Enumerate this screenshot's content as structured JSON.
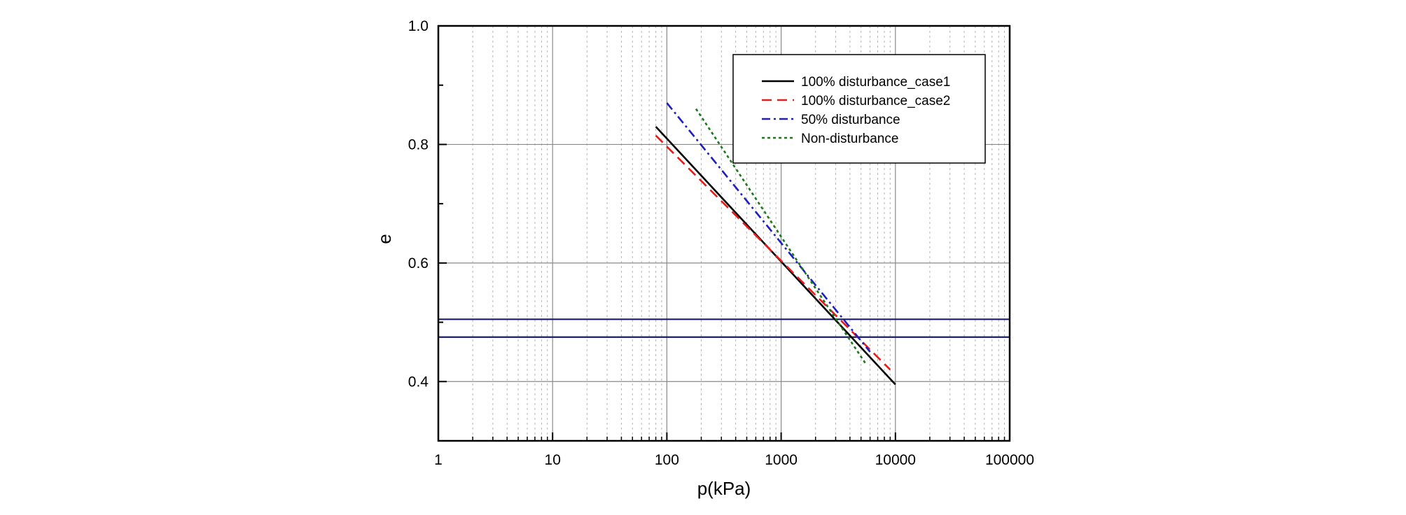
{
  "chart_data": {
    "type": "line",
    "xscale": "log",
    "xlim": [
      1,
      100000
    ],
    "ylim": [
      0.3,
      1.0
    ],
    "xlabel": "p(kPa)",
    "ylabel": "e",
    "grid": true,
    "x_ticks": [
      1,
      10,
      100,
      1000,
      10000,
      100000
    ],
    "x_tick_labels": [
      "1",
      "10",
      "100",
      "1000",
      "10000",
      "100000"
    ],
    "y_ticks": [
      0.4,
      0.6,
      0.8,
      1.0
    ],
    "y_tick_labels": [
      "0.4",
      "0.6",
      "0.8",
      "1.0"
    ],
    "legend_position": "top-right",
    "series": [
      {
        "name": "100% disturbance_case1",
        "color": "#000000",
        "style": "solid",
        "x": [
          80,
          10000
        ],
        "y": [
          0.83,
          0.395
        ]
      },
      {
        "name": "100% disturbance_case2",
        "color": "#dd1f1f",
        "style": "dashed",
        "x": [
          80,
          9000
        ],
        "y": [
          0.815,
          0.42
        ]
      },
      {
        "name": "50% disturbance",
        "color": "#1f1fbf",
        "style": "dashdot",
        "x": [
          100,
          6000
        ],
        "y": [
          0.87,
          0.45
        ]
      },
      {
        "name": "Non-disturbance",
        "color": "#1a7a1a",
        "style": "dotted",
        "x": [
          180,
          5500
        ],
        "y": [
          0.86,
          0.43
        ]
      }
    ],
    "reference_lines": [
      {
        "y": 0.505,
        "color": "#1a1a6e"
      },
      {
        "y": 0.475,
        "color": "#1a1a6e"
      }
    ]
  }
}
